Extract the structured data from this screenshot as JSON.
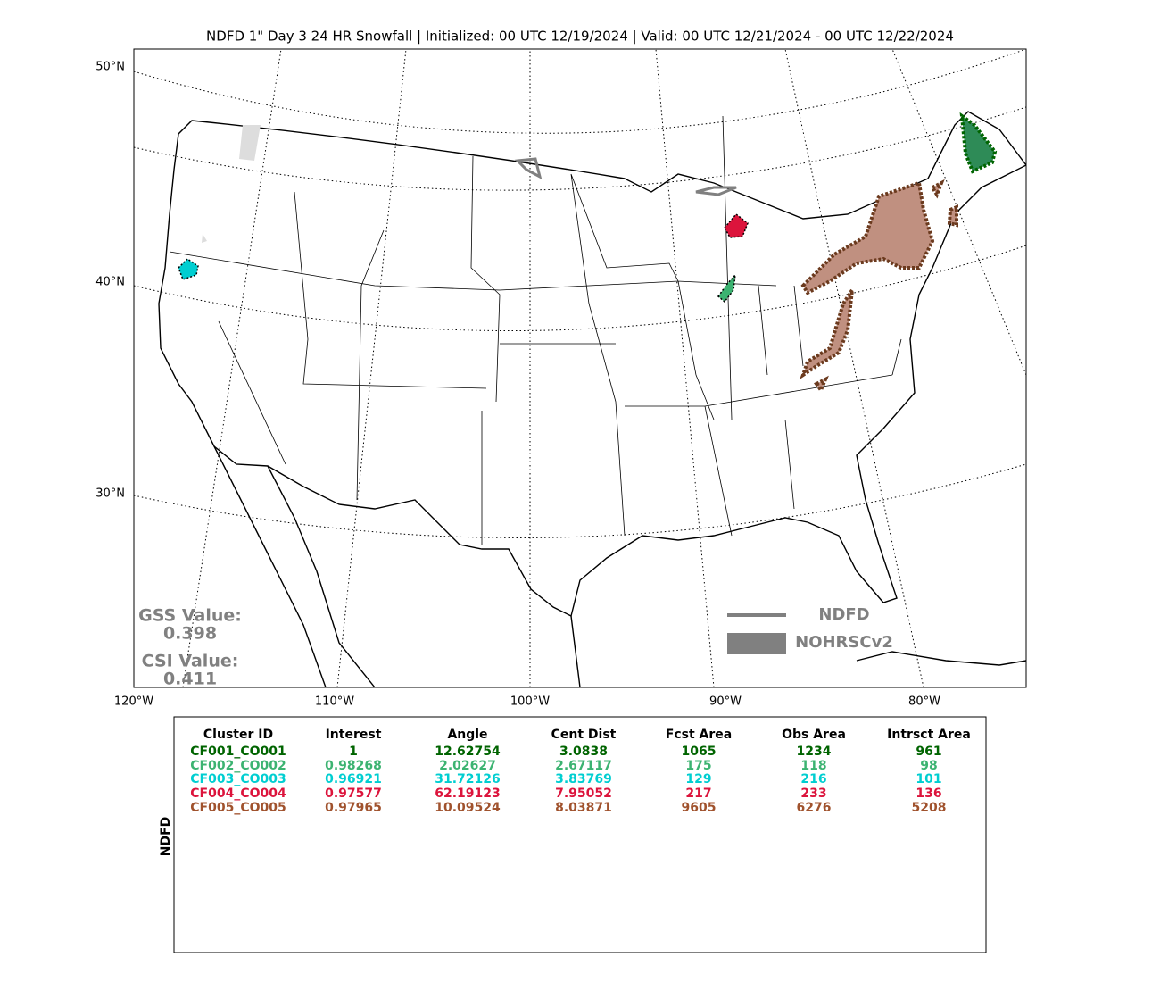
{
  "title": "NDFD 1\" Day 3 24 HR Snowfall | Initialized: 00 UTC 12/19/2024 | Valid: 00 UTC 12/21/2024 - 00 UTC 12/22/2024",
  "map": {
    "lat_labels": [
      "50°N",
      "40°N",
      "30°N"
    ],
    "lon_labels": [
      "120°W",
      "110°W",
      "100°W",
      "90°W",
      "80°W"
    ]
  },
  "scores": [
    {
      "label": "GSS Value:",
      "value": "0.398"
    },
    {
      "label": "CSI Value:",
      "value": "0.411"
    }
  ],
  "legend": [
    {
      "name": "NDFD",
      "color": "#808080"
    },
    {
      "name": "NOHRSCv2",
      "color": "#808080"
    }
  ],
  "table": {
    "side_label": "NDFD",
    "headers": [
      "Cluster ID",
      "Interest",
      "Angle",
      "Cent Dist",
      "Fcst Area",
      "Obs Area",
      "Intrsct Area"
    ],
    "rows": [
      {
        "color": "#006400",
        "cells": [
          "CF001_CO001",
          "1",
          "12.62754",
          "3.0838",
          "1065",
          "1234",
          "961"
        ]
      },
      {
        "color": "#3cb371",
        "cells": [
          "CF002_CO002",
          "0.98268",
          "2.02627",
          "2.67117",
          "175",
          "118",
          "98"
        ]
      },
      {
        "color": "#00ced1",
        "cells": [
          "CF003_CO003",
          "0.96921",
          "31.72126",
          "3.83769",
          "129",
          "216",
          "101"
        ]
      },
      {
        "color": "#dc143c",
        "cells": [
          "CF004_CO004",
          "0.97577",
          "62.19123",
          "7.95052",
          "217",
          "233",
          "136"
        ]
      },
      {
        "color": "#a0522d",
        "cells": [
          "CF005_CO005",
          "0.97965",
          "10.09524",
          "8.03871",
          "9605",
          "6276",
          "5208"
        ]
      }
    ]
  }
}
